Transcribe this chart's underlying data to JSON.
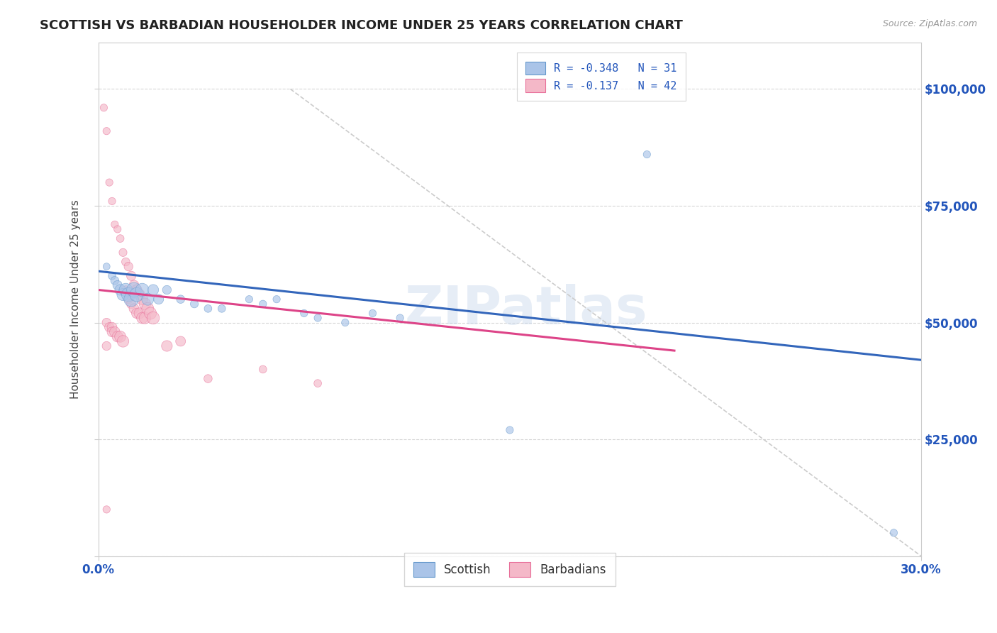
{
  "title": "SCOTTISH VS BARBADIAN HOUSEHOLDER INCOME UNDER 25 YEARS CORRELATION CHART",
  "source": "Source: ZipAtlas.com",
  "ylabel": "Householder Income Under 25 years",
  "xlim": [
    0.0,
    0.3
  ],
  "ylim": [
    0,
    110000
  ],
  "yticks": [
    0,
    25000,
    50000,
    75000,
    100000
  ],
  "ytick_labels_right": [
    "",
    "$25,000",
    "$50,000",
    "$75,000",
    "$100,000"
  ],
  "xticks": [
    0.0,
    0.3
  ],
  "xtick_labels": [
    "0.0%",
    "30.0%"
  ],
  "legend_top": [
    {
      "label": "R = -0.348   N = 31",
      "color": "#aac4e8",
      "edge": "#6699cc"
    },
    {
      "label": "R = -0.137   N = 42",
      "color": "#f4b8c8",
      "edge": "#e8709a"
    }
  ],
  "legend_bottom": [
    {
      "label": "Scottish",
      "color": "#aac4e8",
      "edge": "#6699cc"
    },
    {
      "label": "Barbadians",
      "color": "#f4b8c8",
      "edge": "#e8709a"
    }
  ],
  "watermark": "ZIPatlas",
  "background_color": "#ffffff",
  "grid_color": "#cccccc",
  "scatter_blue": {
    "x": [
      0.003,
      0.005,
      0.006,
      0.007,
      0.008,
      0.009,
      0.01,
      0.011,
      0.012,
      0.013,
      0.014,
      0.016,
      0.018,
      0.02,
      0.022,
      0.025,
      0.03,
      0.035,
      0.04,
      0.045,
      0.055,
      0.06,
      0.065,
      0.075,
      0.08,
      0.09,
      0.1,
      0.11,
      0.15,
      0.2,
      0.29
    ],
    "y": [
      62000,
      60000,
      59000,
      58000,
      57000,
      56000,
      57000,
      56000,
      55000,
      57000,
      56000,
      57000,
      55000,
      57000,
      55000,
      57000,
      55000,
      54000,
      53000,
      53000,
      55000,
      54000,
      55000,
      52000,
      51000,
      50000,
      52000,
      51000,
      27000,
      86000,
      5000
    ],
    "sizes": [
      50,
      60,
      70,
      90,
      120,
      150,
      180,
      200,
      220,
      220,
      200,
      180,
      150,
      120,
      100,
      80,
      70,
      65,
      60,
      60,
      55,
      55,
      55,
      55,
      55,
      55,
      55,
      55,
      55,
      55,
      55
    ],
    "color": "#aac4e8",
    "edgecolor": "#6699cc",
    "alpha": 0.65
  },
  "scatter_pink": {
    "x": [
      0.002,
      0.003,
      0.004,
      0.005,
      0.006,
      0.007,
      0.008,
      0.009,
      0.01,
      0.01,
      0.011,
      0.011,
      0.012,
      0.012,
      0.013,
      0.013,
      0.014,
      0.014,
      0.015,
      0.015,
      0.016,
      0.016,
      0.017,
      0.017,
      0.018,
      0.019,
      0.02,
      0.025,
      0.03,
      0.04,
      0.06,
      0.08,
      0.003,
      0.004,
      0.005,
      0.005,
      0.006,
      0.007,
      0.008,
      0.009,
      0.003,
      0.003
    ],
    "y": [
      96000,
      91000,
      80000,
      76000,
      71000,
      70000,
      68000,
      65000,
      63000,
      57000,
      62000,
      55000,
      60000,
      54000,
      58000,
      53000,
      57000,
      52000,
      56000,
      52000,
      55000,
      51000,
      54000,
      51000,
      53000,
      52000,
      51000,
      45000,
      46000,
      38000,
      40000,
      37000,
      50000,
      49000,
      49000,
      48000,
      48000,
      47000,
      47000,
      46000,
      45000,
      10000
    ],
    "sizes": [
      55,
      55,
      55,
      55,
      55,
      55,
      60,
      65,
      70,
      70,
      80,
      80,
      90,
      90,
      100,
      100,
      110,
      110,
      120,
      120,
      130,
      130,
      140,
      140,
      150,
      150,
      160,
      120,
      100,
      70,
      60,
      60,
      80,
      90,
      100,
      100,
      110,
      120,
      130,
      140,
      80,
      55
    ],
    "color": "#f4b8c8",
    "edgecolor": "#e8709a",
    "alpha": 0.65
  },
  "trendline_blue": {
    "x": [
      0.0,
      0.3
    ],
    "y": [
      61000,
      42000
    ],
    "color": "#3366bb",
    "linewidth": 2.2
  },
  "trendline_pink": {
    "x": [
      0.0,
      0.21
    ],
    "y": [
      57000,
      44000
    ],
    "color": "#dd4488",
    "linewidth": 2.2
  },
  "trendline_gray": {
    "x": [
      0.07,
      0.3
    ],
    "y": [
      100000,
      0
    ],
    "color": "#cccccc",
    "linewidth": 1.2,
    "linestyle": "--"
  },
  "title_color": "#222222",
  "axis_color": "#444444",
  "tick_color": "#2255bb",
  "source_color": "#999999"
}
